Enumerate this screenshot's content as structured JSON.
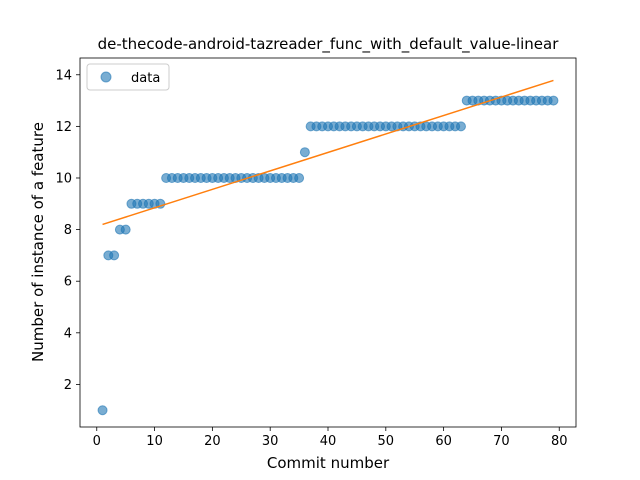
{
  "chart_data": {
    "type": "scatter",
    "title": "de-thecode-android-tazreader_func_with_default_value-linear",
    "xlabel": "Commit number",
    "ylabel": "Number of instance of a feature",
    "xlim": [
      -2.9,
      82.9
    ],
    "ylim": [
      0.35,
      14.65
    ],
    "xticks": [
      0,
      10,
      20,
      30,
      40,
      50,
      60,
      70,
      80
    ],
    "yticks": [
      2,
      4,
      6,
      8,
      10,
      12,
      14
    ],
    "grid": false,
    "legend_position": "upper-left",
    "series": [
      {
        "name": "data",
        "kind": "points",
        "color": "#1f77b4",
        "x": [
          1,
          2,
          3,
          4,
          5,
          6,
          7,
          8,
          9,
          10,
          11,
          12,
          13,
          14,
          15,
          16,
          17,
          18,
          19,
          20,
          21,
          22,
          23,
          24,
          25,
          26,
          27,
          28,
          29,
          30,
          31,
          32,
          33,
          34,
          35,
          36,
          37,
          38,
          39,
          40,
          41,
          42,
          43,
          44,
          45,
          46,
          47,
          48,
          49,
          50,
          51,
          52,
          53,
          54,
          55,
          56,
          57,
          58,
          59,
          60,
          61,
          62,
          63,
          64,
          65,
          66,
          67,
          68,
          69,
          70,
          71,
          72,
          73,
          74,
          75,
          76,
          77,
          78,
          79
        ],
        "y": [
          1,
          7,
          7,
          8,
          8,
          9,
          9,
          9,
          9,
          9,
          9,
          10,
          10,
          10,
          10,
          10,
          10,
          10,
          10,
          10,
          10,
          10,
          10,
          10,
          10,
          10,
          10,
          10,
          10,
          10,
          10,
          10,
          10,
          10,
          10,
          11,
          12,
          12,
          12,
          12,
          12,
          12,
          12,
          12,
          12,
          12,
          12,
          12,
          12,
          12,
          12,
          12,
          12,
          12,
          12,
          12,
          12,
          12,
          12,
          12,
          12,
          12,
          12,
          13,
          13,
          13,
          13,
          13,
          13,
          13,
          13,
          13,
          13,
          13,
          13,
          13,
          13,
          13,
          13
        ]
      },
      {
        "kind": "fit-line",
        "color": "#ff7f0e",
        "x": [
          1,
          79
        ],
        "y": [
          8.2,
          13.78
        ]
      }
    ]
  }
}
